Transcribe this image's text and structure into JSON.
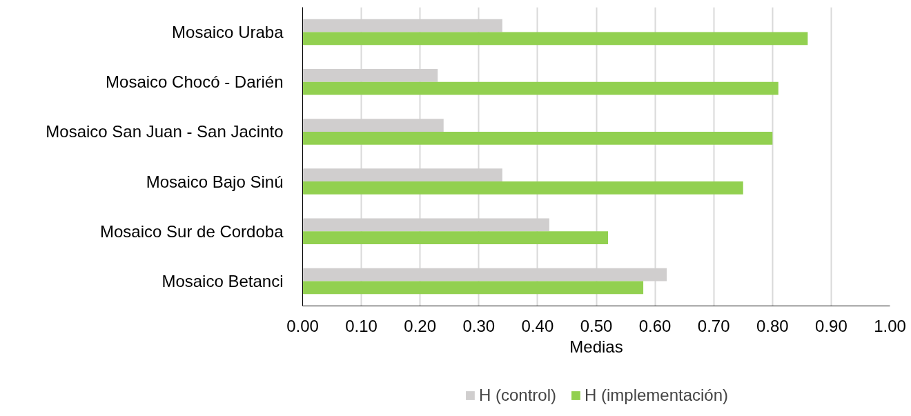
{
  "chart_data": {
    "type": "bar",
    "orientation": "horizontal",
    "xlabel": "Medias",
    "categories": [
      "Mosaico Uraba",
      "Mosaico Chocó - Darién",
      "Mosaico San Juan - San Jacinto",
      "Mosaico Bajo Sinú",
      "Mosaico Sur de Cordoba",
      "Mosaico Betanci"
    ],
    "series": [
      {
        "name": "H (control)",
        "color": "#d0cece",
        "values": [
          0.34,
          0.23,
          0.24,
          0.34,
          0.42,
          0.62
        ]
      },
      {
        "name": "H (implementación)",
        "color": "#92d050",
        "values": [
          0.86,
          0.81,
          0.8,
          0.75,
          0.52,
          0.58
        ]
      }
    ],
    "xlim": [
      0,
      1
    ],
    "xticks": [
      {
        "value": 0,
        "label": "0.00"
      },
      {
        "value": 0.1,
        "label": "0.10"
      },
      {
        "value": 0.2,
        "label": "0.20"
      },
      {
        "value": 0.3,
        "label": "0.30"
      },
      {
        "value": 0.4,
        "label": "0.40"
      },
      {
        "value": 0.5,
        "label": "0.50"
      },
      {
        "value": 0.6,
        "label": "0.60"
      },
      {
        "value": 0.7,
        "label": "0.70"
      },
      {
        "value": 0.8,
        "label": "0.80"
      },
      {
        "value": 0.9,
        "label": "0.90"
      },
      {
        "value": 1,
        "label": "1.00"
      }
    ],
    "grid": "x",
    "legend": "bottom"
  }
}
